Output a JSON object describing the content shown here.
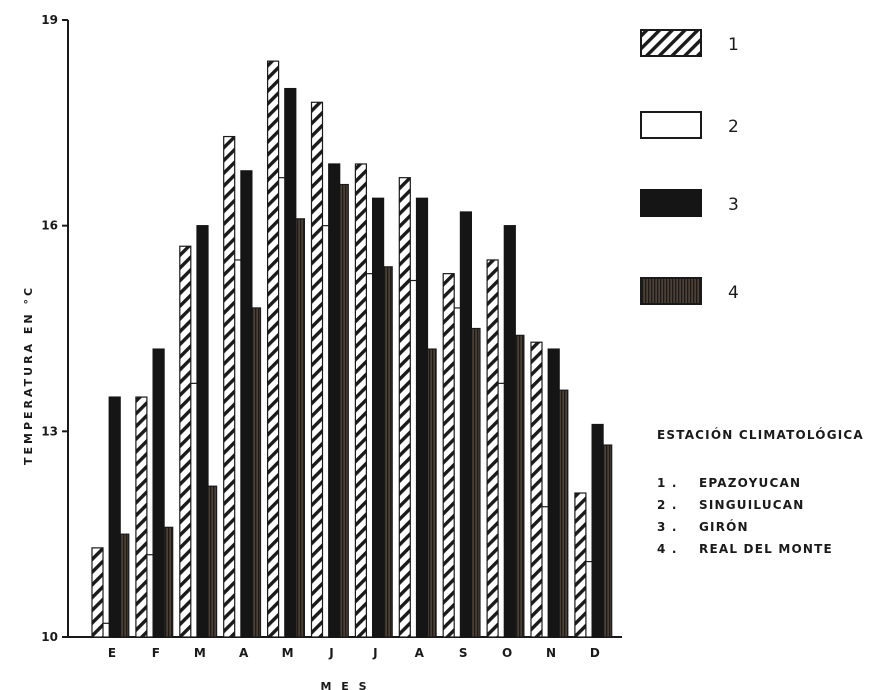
{
  "chart_data": {
    "type": "bar",
    "xlabel": "M E S",
    "ylabel": "TEMPERATURA EN °C",
    "categories": [
      "E",
      "F",
      "M",
      "A",
      "M",
      "J",
      "J",
      "A",
      "S",
      "O",
      "N",
      "D"
    ],
    "ylim": [
      10,
      19
    ],
    "yticks": [
      "19",
      "16",
      "13",
      "10"
    ],
    "series": [
      {
        "name": "1",
        "pattern": "hatched",
        "values": [
          11.3,
          13.5,
          15.7,
          17.3,
          18.4,
          17.8,
          16.9,
          16.7,
          15.3,
          15.5,
          14.3,
          12.1
        ]
      },
      {
        "name": "2",
        "pattern": "open",
        "values": [
          10.2,
          11.2,
          13.7,
          15.5,
          16.7,
          16.0,
          15.3,
          15.2,
          14.8,
          13.7,
          11.9,
          11.1
        ]
      },
      {
        "name": "3",
        "pattern": "solid-black",
        "values": [
          13.5,
          14.2,
          16.0,
          16.8,
          18.0,
          16.9,
          16.4,
          16.4,
          16.2,
          16.0,
          14.2,
          13.1
        ]
      },
      {
        "name": "4",
        "pattern": "vertical-lines-dark",
        "values": [
          11.5,
          11.6,
          12.2,
          14.8,
          16.1,
          16.6,
          15.4,
          14.2,
          14.5,
          14.4,
          13.6,
          12.8
        ]
      }
    ],
    "grid": false
  },
  "legend": {
    "items": [
      {
        "number": "1",
        "pattern": "hatched"
      },
      {
        "number": "2",
        "pattern": "open"
      },
      {
        "number": "3",
        "pattern": "solid-black"
      },
      {
        "number": "4",
        "pattern": "vertical-lines-dark"
      }
    ]
  },
  "stations": {
    "title": "ESTACIÓN CLIMATOLÓGICA",
    "items": [
      {
        "number": "1 .",
        "name": "EPAZOYUCAN"
      },
      {
        "number": "2 .",
        "name": "SINGUILUCAN"
      },
      {
        "number": "3 .",
        "name": "GIRÓN"
      },
      {
        "number": "4 .",
        "name": "REAL DEL MONTE"
      }
    ]
  },
  "colors": {
    "ink": "#1a1a1a",
    "solid": "#151515",
    "dark_bar": "#3a332c",
    "paper": "#ffffff"
  }
}
